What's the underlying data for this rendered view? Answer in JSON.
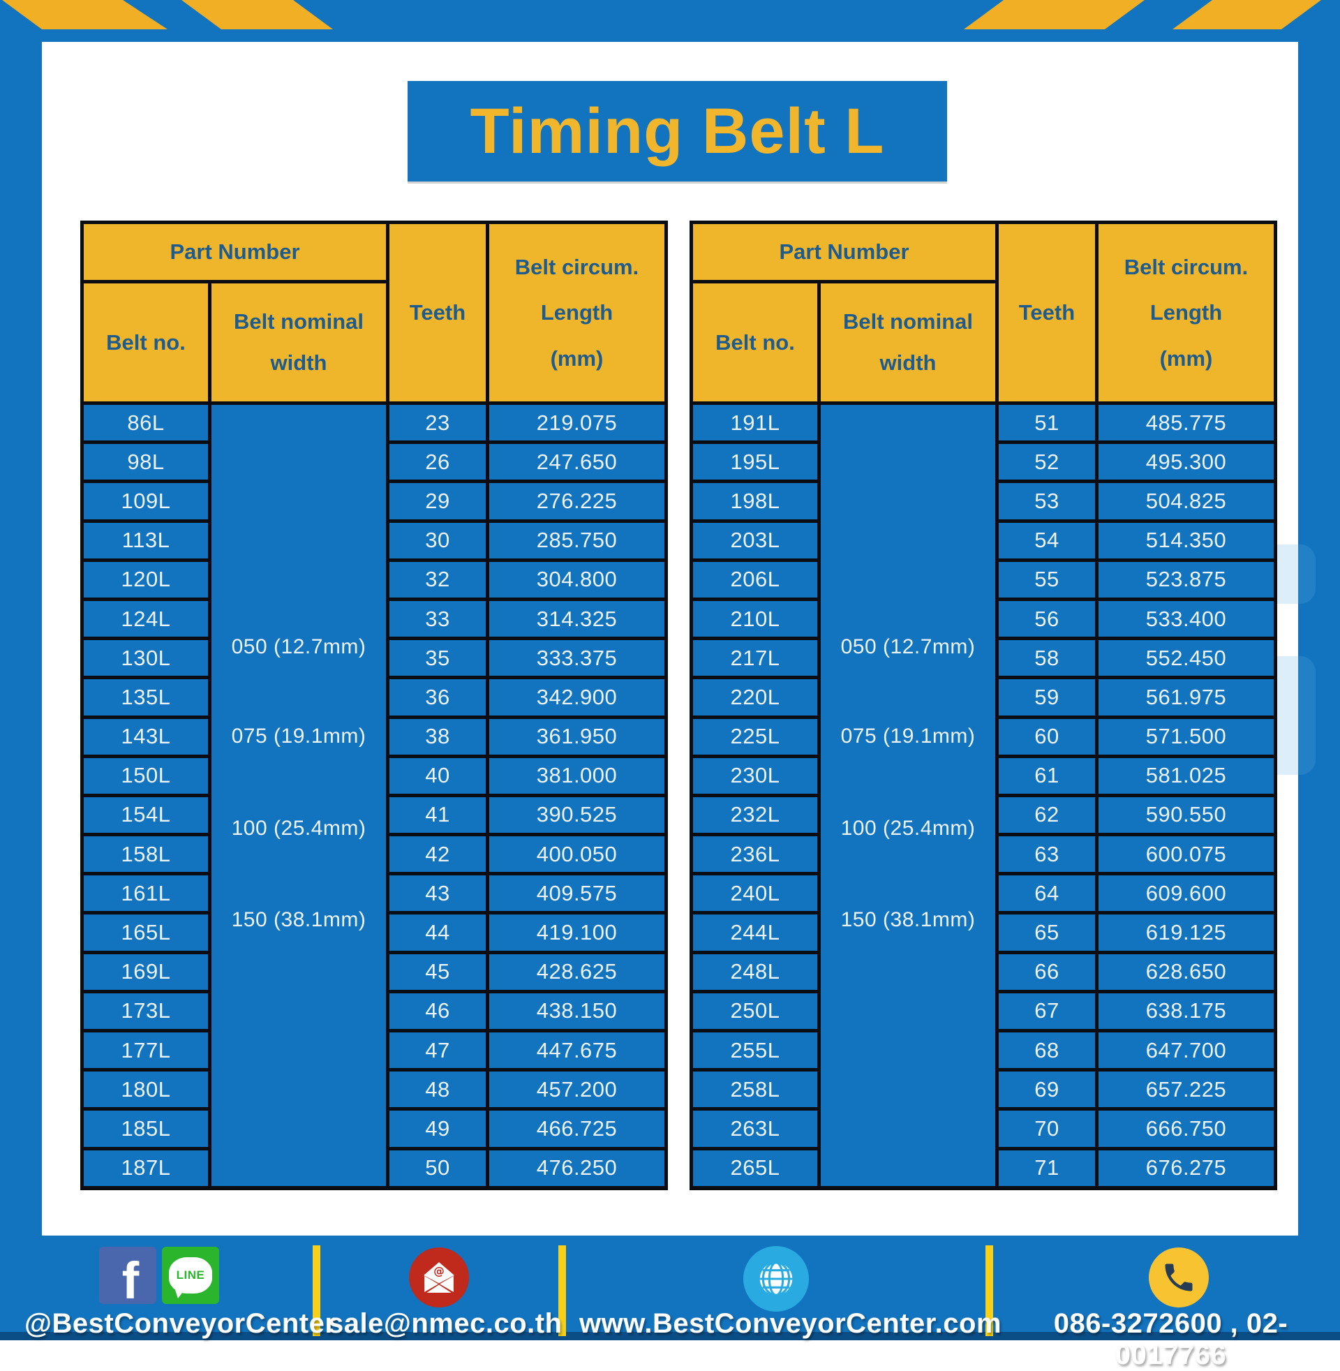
{
  "title": "Timing Belt L",
  "headers": {
    "part_number": "Part Number",
    "belt_no": "Belt no.",
    "belt_nominal_width_lines": [
      "Belt nominal",
      "width"
    ],
    "teeth": "Teeth",
    "belt_circum_lines": [
      "Belt circum.",
      "Length",
      "(mm)"
    ]
  },
  "tables": [
    {
      "widths": [
        "050 (12.7mm)",
        "075 (19.1mm)",
        "100 (25.4mm)",
        "150 (38.1mm)"
      ],
      "rows": [
        {
          "belt_no": "86L",
          "teeth": "23",
          "length": "219.075"
        },
        {
          "belt_no": "98L",
          "teeth": "26",
          "length": "247.650"
        },
        {
          "belt_no": "109L",
          "teeth": "29",
          "length": "276.225"
        },
        {
          "belt_no": "113L",
          "teeth": "30",
          "length": "285.750"
        },
        {
          "belt_no": "120L",
          "teeth": "32",
          "length": "304.800"
        },
        {
          "belt_no": "124L",
          "teeth": "33",
          "length": "314.325"
        },
        {
          "belt_no": "130L",
          "teeth": "35",
          "length": "333.375"
        },
        {
          "belt_no": "135L",
          "teeth": "36",
          "length": "342.900"
        },
        {
          "belt_no": "143L",
          "teeth": "38",
          "length": "361.950"
        },
        {
          "belt_no": "150L",
          "teeth": "40",
          "length": "381.000"
        },
        {
          "belt_no": "154L",
          "teeth": "41",
          "length": "390.525"
        },
        {
          "belt_no": "158L",
          "teeth": "42",
          "length": "400.050"
        },
        {
          "belt_no": "161L",
          "teeth": "43",
          "length": "409.575"
        },
        {
          "belt_no": "165L",
          "teeth": "44",
          "length": "419.100"
        },
        {
          "belt_no": "169L",
          "teeth": "45",
          "length": "428.625"
        },
        {
          "belt_no": "173L",
          "teeth": "46",
          "length": "438.150"
        },
        {
          "belt_no": "177L",
          "teeth": "47",
          "length": "447.675"
        },
        {
          "belt_no": "180L",
          "teeth": "48",
          "length": "457.200"
        },
        {
          "belt_no": "185L",
          "teeth": "49",
          "length": "466.725"
        },
        {
          "belt_no": "187L",
          "teeth": "50",
          "length": "476.250"
        }
      ]
    },
    {
      "widths": [
        "050 (12.7mm)",
        "075 (19.1mm)",
        "100 (25.4mm)",
        "150 (38.1mm)"
      ],
      "rows": [
        {
          "belt_no": "191L",
          "teeth": "51",
          "length": "485.775"
        },
        {
          "belt_no": "195L",
          "teeth": "52",
          "length": "495.300"
        },
        {
          "belt_no": "198L",
          "teeth": "53",
          "length": "504.825"
        },
        {
          "belt_no": "203L",
          "teeth": "54",
          "length": "514.350"
        },
        {
          "belt_no": "206L",
          "teeth": "55",
          "length": "523.875"
        },
        {
          "belt_no": "210L",
          "teeth": "56",
          "length": "533.400"
        },
        {
          "belt_no": "217L",
          "teeth": "58",
          "length": "552.450"
        },
        {
          "belt_no": "220L",
          "teeth": "59",
          "length": "561.975"
        },
        {
          "belt_no": "225L",
          "teeth": "60",
          "length": "571.500"
        },
        {
          "belt_no": "230L",
          "teeth": "61",
          "length": "581.025"
        },
        {
          "belt_no": "232L",
          "teeth": "62",
          "length": "590.550"
        },
        {
          "belt_no": "236L",
          "teeth": "63",
          "length": "600.075"
        },
        {
          "belt_no": "240L",
          "teeth": "64",
          "length": "609.600"
        },
        {
          "belt_no": "244L",
          "teeth": "65",
          "length": "619.125"
        },
        {
          "belt_no": "248L",
          "teeth": "66",
          "length": "628.650"
        },
        {
          "belt_no": "250L",
          "teeth": "67",
          "length": "638.175"
        },
        {
          "belt_no": "255L",
          "teeth": "68",
          "length": "647.700"
        },
        {
          "belt_no": "258L",
          "teeth": "69",
          "length": "657.225"
        },
        {
          "belt_no": "263L",
          "teeth": "70",
          "length": "666.750"
        },
        {
          "belt_no": "265L",
          "teeth": "71",
          "length": "676.275"
        }
      ]
    }
  ],
  "footer": {
    "facebook_handle": "@BestConveyorCenter",
    "email": "sale@nmec.co.th",
    "website": "www.BestConveyorCenter.com",
    "phone_numbers": "086-3272600 , 02-0017766",
    "line_label": "LINE"
  },
  "colors": {
    "frame_blue": "#1273be",
    "cell_blue": "#1273be",
    "gold": "#f0b62b",
    "divider_yellow": "#f7d117",
    "header_text_navy": "#1e5b8e",
    "title_text_gold": "#f2b62d",
    "cell_text": "#ecf3f9",
    "border_black": "#0b0c11",
    "bottom_strip_blue": "#0b4e86"
  }
}
